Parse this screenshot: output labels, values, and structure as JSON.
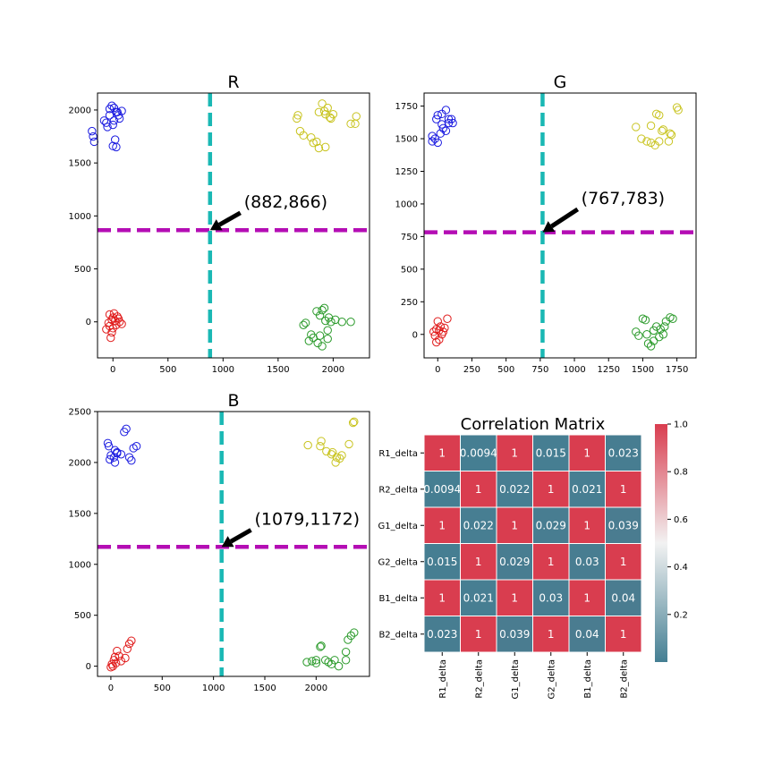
{
  "chart_data": [
    {
      "type": "scatter",
      "title": "R",
      "xlim": [
        -140,
        2330
      ],
      "ylim": [
        -340,
        2160
      ],
      "xticks": [
        0,
        500,
        1000,
        1500,
        2000
      ],
      "yticks": [
        0,
        500,
        1000,
        1500,
        2000
      ],
      "vline": {
        "x": 882,
        "color": "#1ab8b4"
      },
      "hline": {
        "y": 866,
        "color": "#b40db4"
      },
      "annotation": {
        "text": "(882,866)",
        "point": [
          882,
          866
        ],
        "text_at": [
          1190,
          1080
        ]
      },
      "series": [
        {
          "color": "#1a1ae0",
          "points": [
            [
              -30,
              1950
            ],
            [
              10,
              1900
            ],
            [
              40,
              1980
            ],
            [
              80,
              1990
            ],
            [
              -50,
              1840
            ],
            [
              0,
              1860
            ],
            [
              60,
              1920
            ],
            [
              -10,
              2040
            ],
            [
              30,
              1980
            ],
            [
              -80,
              1900
            ],
            [
              20,
              1720
            ],
            [
              0,
              1660
            ],
            [
              30,
              1650
            ],
            [
              -180,
              1750
            ],
            [
              -170,
              1700
            ],
            [
              -190,
              1800
            ],
            [
              50,
              1950
            ],
            [
              -30,
              2010
            ],
            [
              10,
              2020
            ],
            [
              -60,
              1880
            ]
          ]
        },
        {
          "color": "#c8c31e",
          "points": [
            [
              1680,
              1950
            ],
            [
              1670,
              1920
            ],
            [
              1870,
              1980
            ],
            [
              1930,
              1960
            ],
            [
              1970,
              1930
            ],
            [
              2000,
              1960
            ],
            [
              1900,
              2060
            ],
            [
              1920,
              1990
            ],
            [
              1950,
              2020
            ],
            [
              1980,
              1920
            ],
            [
              1700,
              1800
            ],
            [
              1730,
              1760
            ],
            [
              1800,
              1740
            ],
            [
              1850,
              1700
            ],
            [
              1820,
              1690
            ],
            [
              1870,
              1640
            ],
            [
              1930,
              1650
            ],
            [
              2210,
              1940
            ],
            [
              2200,
              1870
            ],
            [
              2160,
              1870
            ]
          ]
        },
        {
          "color": "#e01a1a",
          "points": [
            [
              -30,
              70
            ],
            [
              -10,
              20
            ],
            [
              20,
              10
            ],
            [
              40,
              50
            ],
            [
              60,
              0
            ],
            [
              -40,
              -10
            ],
            [
              -60,
              -70
            ],
            [
              0,
              -60
            ],
            [
              -20,
              -150
            ],
            [
              80,
              -20
            ],
            [
              0,
              40
            ],
            [
              30,
              -30
            ],
            [
              -30,
              -40
            ],
            [
              10,
              80
            ],
            [
              -10,
              -100
            ],
            [
              50,
              30
            ]
          ]
        },
        {
          "color": "#2a9a2a",
          "points": [
            [
              1750,
              -10
            ],
            [
              1730,
              -30
            ],
            [
              1800,
              -120
            ],
            [
              1780,
              -180
            ],
            [
              1820,
              -150
            ],
            [
              1860,
              -200
            ],
            [
              1900,
              -230
            ],
            [
              1880,
              -130
            ],
            [
              1950,
              -160
            ],
            [
              1930,
              10
            ],
            [
              1980,
              0
            ],
            [
              2020,
              20
            ],
            [
              1960,
              40
            ],
            [
              1900,
              110
            ],
            [
              1920,
              130
            ],
            [
              1850,
              100
            ],
            [
              1880,
              60
            ],
            [
              2080,
              0
            ],
            [
              2160,
              0
            ],
            [
              1950,
              -80
            ]
          ]
        }
      ]
    },
    {
      "type": "scatter",
      "title": "G",
      "xlim": [
        -100,
        1890
      ],
      "ylim": [
        -180,
        1850
      ],
      "xticks": [
        0,
        250,
        500,
        750,
        1000,
        1250,
        1500,
        1750
      ],
      "yticks": [
        0,
        250,
        500,
        750,
        1000,
        1250,
        1500,
        1750
      ],
      "vline": {
        "x": 767,
        "color": "#1ab8b4"
      },
      "hline": {
        "y": 783,
        "color": "#b40db4"
      },
      "annotation": {
        "text": "(767,783)",
        "point": [
          767,
          783
        ],
        "text_at": [
          1050,
          1000
        ]
      },
      "series": [
        {
          "color": "#1a1ae0",
          "points": [
            [
              0,
              1680
            ],
            [
              30,
              1690
            ],
            [
              60,
              1720
            ],
            [
              80,
              1620
            ],
            [
              100,
              1650
            ],
            [
              110,
              1620
            ],
            [
              40,
              1580
            ],
            [
              20,
              1540
            ],
            [
              0,
              1470
            ],
            [
              -20,
              1500
            ],
            [
              -40,
              1520
            ],
            [
              -40,
              1480
            ],
            [
              60,
              1560
            ],
            [
              80,
              1650
            ],
            [
              30,
              1610
            ],
            [
              -10,
              1650
            ]
          ]
        },
        {
          "color": "#c8c31e",
          "points": [
            [
              1450,
              1590
            ],
            [
              1490,
              1500
            ],
            [
              1530,
              1480
            ],
            [
              1560,
              1470
            ],
            [
              1590,
              1450
            ],
            [
              1620,
              1480
            ],
            [
              1640,
              1560
            ],
            [
              1620,
              1680
            ],
            [
              1600,
              1690
            ],
            [
              1560,
              1600
            ],
            [
              1700,
              1540
            ],
            [
              1710,
              1530
            ],
            [
              1750,
              1740
            ],
            [
              1760,
              1720
            ],
            [
              1690,
              1480
            ],
            [
              1650,
              1570
            ]
          ]
        },
        {
          "color": "#e01a1a",
          "points": [
            [
              0,
              100
            ],
            [
              20,
              60
            ],
            [
              -10,
              40
            ],
            [
              40,
              20
            ],
            [
              -20,
              -10
            ],
            [
              10,
              -40
            ],
            [
              -10,
              -60
            ],
            [
              50,
              50
            ],
            [
              70,
              120
            ],
            [
              30,
              0
            ],
            [
              -30,
              20
            ],
            [
              10,
              30
            ]
          ]
        },
        {
          "color": "#2a9a2a",
          "points": [
            [
              1450,
              20
            ],
            [
              1470,
              -10
            ],
            [
              1500,
              120
            ],
            [
              1520,
              110
            ],
            [
              1540,
              -70
            ],
            [
              1560,
              -90
            ],
            [
              1580,
              -50
            ],
            [
              1600,
              60
            ],
            [
              1630,
              40
            ],
            [
              1650,
              0
            ],
            [
              1670,
              100
            ],
            [
              1720,
              120
            ],
            [
              1700,
              130
            ],
            [
              1660,
              60
            ],
            [
              1620,
              -20
            ],
            [
              1580,
              30
            ],
            [
              1530,
              0
            ]
          ]
        }
      ]
    },
    {
      "type": "scatter",
      "title": "B",
      "xlim": [
        -130,
        2520
      ],
      "ylim": [
        -100,
        2500
      ],
      "xticks": [
        0,
        500,
        1000,
        1500,
        2000
      ],
      "yticks": [
        0,
        500,
        1000,
        1500,
        2000,
        2500
      ],
      "vline": {
        "x": 1079,
        "color": "#1ab8b4"
      },
      "hline": {
        "y": 1172,
        "color": "#b40db4"
      },
      "annotation": {
        "text": "(1079,1172)",
        "point": [
          1079,
          1172
        ],
        "text_at": [
          1400,
          1390
        ]
      },
      "series": [
        {
          "color": "#1a1ae0",
          "points": [
            [
              -30,
              2190
            ],
            [
              -20,
              2160
            ],
            [
              40,
              2120
            ],
            [
              60,
              2090
            ],
            [
              30,
              2050
            ],
            [
              -10,
              2030
            ],
            [
              40,
              2000
            ],
            [
              100,
              2080
            ],
            [
              130,
              2300
            ],
            [
              150,
              2330
            ],
            [
              180,
              2050
            ],
            [
              200,
              2020
            ],
            [
              220,
              2140
            ],
            [
              250,
              2160
            ],
            [
              60,
              2100
            ],
            [
              0,
              2070
            ]
          ]
        },
        {
          "color": "#c8c31e",
          "points": [
            [
              1920,
              2170
            ],
            [
              2040,
              2160
            ],
            [
              2050,
              2210
            ],
            [
              2150,
              2080
            ],
            [
              2160,
              2100
            ],
            [
              2200,
              2050
            ],
            [
              2190,
              2000
            ],
            [
              2230,
              2040
            ],
            [
              2320,
              2180
            ],
            [
              2360,
              2390
            ],
            [
              2370,
              2400
            ],
            [
              2250,
              2070
            ],
            [
              2100,
              2110
            ]
          ]
        },
        {
          "color": "#e01a1a",
          "points": [
            [
              0,
              -10
            ],
            [
              10,
              20
            ],
            [
              30,
              60
            ],
            [
              40,
              90
            ],
            [
              60,
              150
            ],
            [
              80,
              100
            ],
            [
              100,
              50
            ],
            [
              140,
              80
            ],
            [
              160,
              170
            ],
            [
              180,
              220
            ],
            [
              200,
              250
            ],
            [
              20,
              0
            ],
            [
              50,
              30
            ]
          ]
        },
        {
          "color": "#2a9a2a",
          "points": [
            [
              1910,
              40
            ],
            [
              1960,
              50
            ],
            [
              2000,
              30
            ],
            [
              2040,
              190
            ],
            [
              2050,
              200
            ],
            [
              2090,
              60
            ],
            [
              2120,
              40
            ],
            [
              2150,
              20
            ],
            [
              2180,
              60
            ],
            [
              2220,
              0
            ],
            [
              2290,
              140
            ],
            [
              2310,
              260
            ],
            [
              2340,
              300
            ],
            [
              2370,
              330
            ],
            [
              2290,
              60
            ],
            [
              2000,
              60
            ]
          ]
        }
      ]
    },
    {
      "type": "heatmap",
      "title": "Correlation Matrix",
      "row_labels": [
        "R1_delta",
        "R2_delta",
        "G1_delta",
        "G2_delta",
        "B1_delta",
        "B2_delta"
      ],
      "col_labels": [
        "R1_delta",
        "R2_delta",
        "G1_delta",
        "G2_delta",
        "B1_delta",
        "B2_delta"
      ],
      "values": [
        [
          1,
          0.0094,
          1,
          0.015,
          1,
          0.023
        ],
        [
          0.0094,
          1,
          0.022,
          1,
          0.021,
          1
        ],
        [
          1,
          0.022,
          1,
          0.029,
          1,
          0.039
        ],
        [
          0.015,
          1,
          0.029,
          1,
          0.03,
          1
        ],
        [
          1,
          0.021,
          1,
          0.03,
          1,
          0.04
        ],
        [
          0.023,
          1,
          0.039,
          1,
          0.04,
          1
        ]
      ],
      "cell_labels": [
        [
          "1",
          "0.0094",
          "1",
          "0.015",
          "1",
          "0.023"
        ],
        [
          "0.0094",
          "1",
          "0.022",
          "1",
          "0.021",
          "1"
        ],
        [
          "1",
          "0.022",
          "1",
          "0.029",
          "1",
          "0.039"
        ],
        [
          "0.015",
          "1",
          "0.029",
          "1",
          "0.03",
          "1"
        ],
        [
          "1",
          "0.021",
          "1",
          "0.03",
          "1",
          "0.04"
        ],
        [
          "0.023",
          "1",
          "0.039",
          "1",
          "0.04",
          "1"
        ]
      ],
      "colorbar": {
        "min": 0,
        "max": 1.0,
        "ticks": [
          0.2,
          0.4,
          0.6,
          0.8,
          1.0
        ],
        "tick_labels": [
          "0.2",
          "0.4",
          "0.6",
          "0.8",
          "1.0"
        ]
      },
      "colors": {
        "low": "#447f93",
        "mid": "#f2f2f2",
        "high": "#d93d4f"
      }
    }
  ]
}
